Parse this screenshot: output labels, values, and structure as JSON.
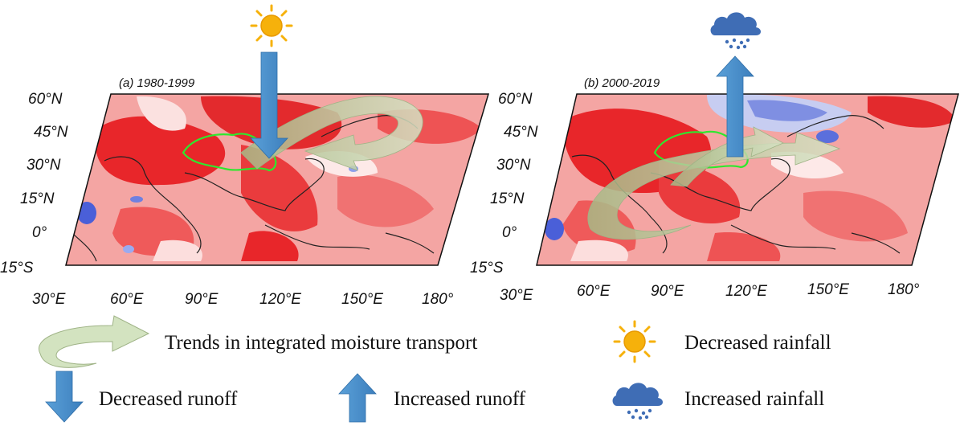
{
  "panels": [
    {
      "title": "(a) 1980-1999",
      "lat_labels": [
        "60°N",
        "45°N",
        "30°N",
        "15°N",
        "0°",
        "15°S"
      ],
      "lon_labels": [
        "30°E",
        "60°E",
        "90°E",
        "120°E",
        "150°E",
        "180°"
      ],
      "top_icon": "sun-icon",
      "vertical_arrow": "decreased-runoff"
    },
    {
      "title": "(b) 2000-2019",
      "lat_labels": [
        "60°N",
        "45°N",
        "30°N",
        "15°N",
        "0°",
        "15°S"
      ],
      "lon_labels": [
        "30°E",
        "60°E",
        "90°E",
        "120°E",
        "150°E",
        "180°"
      ],
      "top_icon": "rain-cloud-icon",
      "vertical_arrow": "increased-runoff"
    }
  ],
  "legend": {
    "moisture": "Trends in integrated moisture transport",
    "decreased_runoff": "Decreased runoff",
    "increased_runoff": "Increased runoff",
    "decreased_rainfall": "Decreased rainfall",
    "increased_rainfall": "Increased rainfall"
  },
  "colors": {
    "trend_red": "#e8262a",
    "trend_pink": "#f6a8a6",
    "trend_blue": "#4a5fd8",
    "runoff_arrow": "#4f93cf",
    "moisture_arrow": "#c7d6b2",
    "basin_outline": "#2ee82e",
    "sun": "#f6b10b",
    "cloud": "#3f6db5"
  }
}
